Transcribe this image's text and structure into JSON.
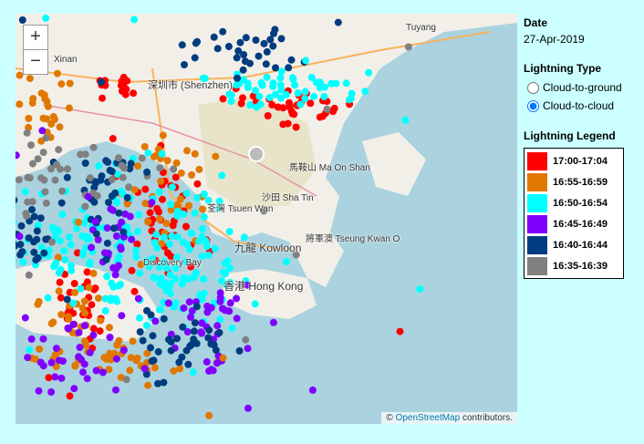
{
  "map": {
    "zoom_in": "+",
    "zoom_out": "−",
    "labels": [
      {
        "text": "Xinan"
      },
      {
        "text": "深圳市 (Shenzhen)"
      },
      {
        "text": "Tuyang"
      },
      {
        "text": "荃灣 Tsuen Wan"
      },
      {
        "text": "沙田 Sha Tin"
      },
      {
        "text": "馬鞍山 Ma On Shan"
      },
      {
        "text": "九龍 Kowloon"
      },
      {
        "text": "香港 Hong Kong"
      },
      {
        "text": "將軍澳 Tseung Kwan O"
      },
      {
        "text": "Discovery Bay"
      }
    ],
    "attribution": {
      "prefix": "©",
      "link": "OpenStreetMap",
      "suffix": "contributors."
    }
  },
  "sidebar": {
    "date_heading": "Date",
    "date": "27-Apr-2019",
    "type_heading": "Lightning Type",
    "types": [
      {
        "label": "Cloud-to-ground",
        "selected": false
      },
      {
        "label": "Cloud-to-cloud",
        "selected": true
      }
    ],
    "legend_heading": "Lightning Legend",
    "legend": [
      {
        "label": "17:00-17:04",
        "color": "#ff0000"
      },
      {
        "label": "16:55-16:59",
        "color": "#e07800"
      },
      {
        "label": "16:50-16:54",
        "color": "#00ffff"
      },
      {
        "label": "16:45-16:49",
        "color": "#8000ff"
      },
      {
        "label": "16:40-16:44",
        "color": "#003c80"
      },
      {
        "label": "16:35-16:39",
        "color": "#808080"
      }
    ]
  }
}
